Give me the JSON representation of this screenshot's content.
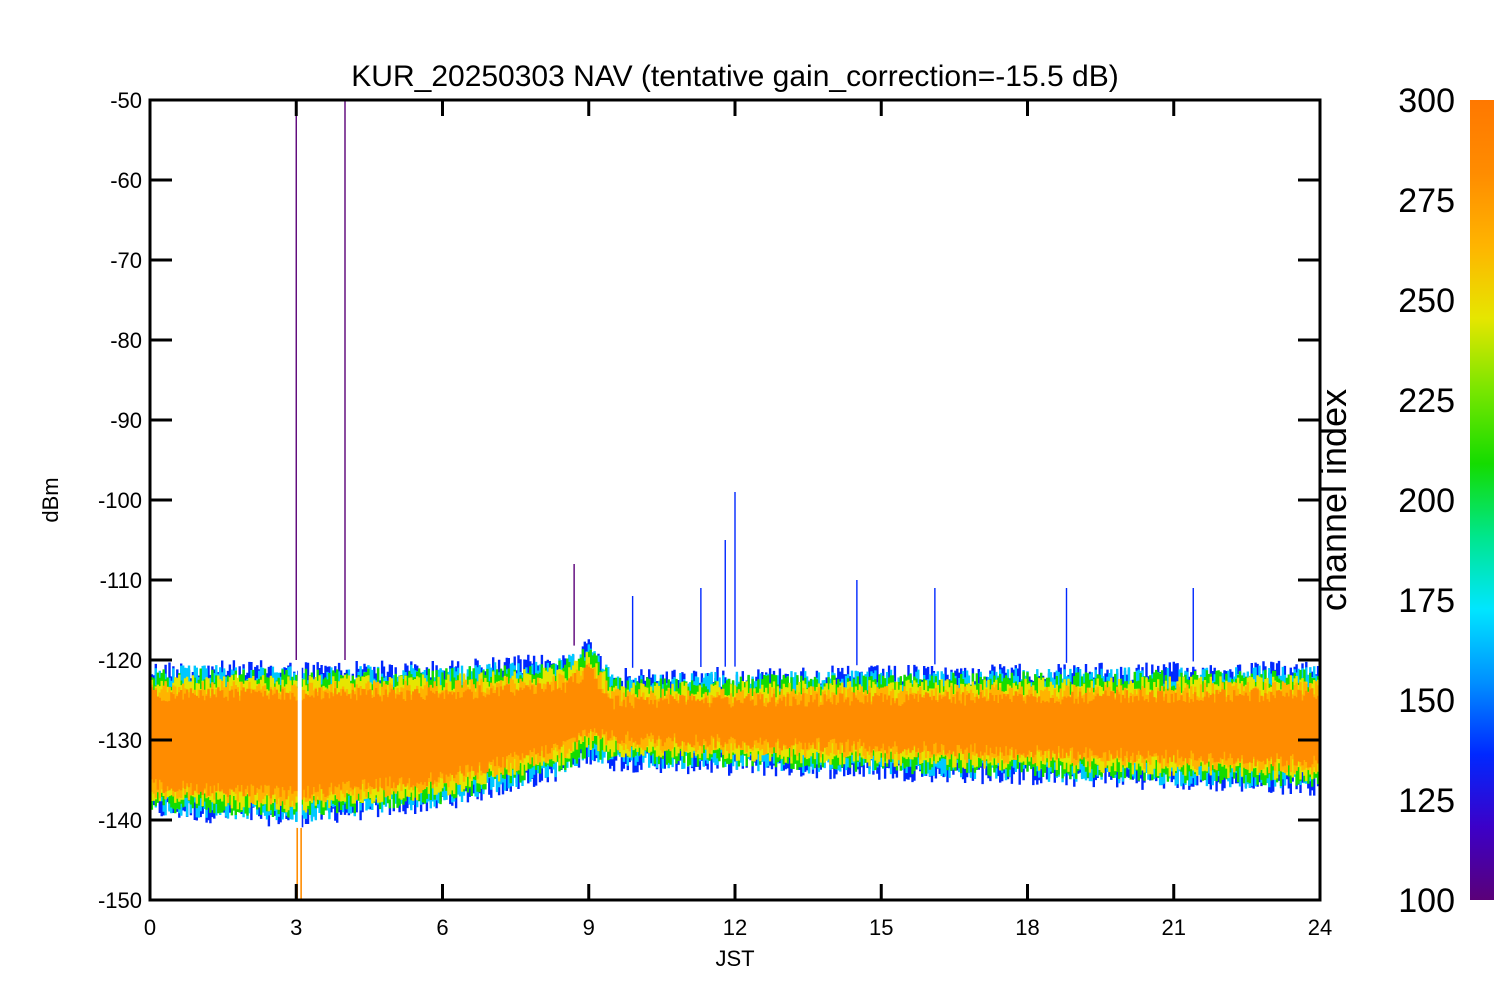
{
  "chart_data": {
    "type": "line",
    "title": "KUR_20250303 NAV (tentative gain_correction=-15.5 dB)",
    "xlabel": "JST",
    "ylabel": "dBm",
    "xlim": [
      0,
      24
    ],
    "ylim": [
      -150,
      -50
    ],
    "x_ticks": [
      0,
      3,
      6,
      9,
      12,
      15,
      18,
      21,
      24
    ],
    "x_tick_labels": [
      "0",
      "3",
      "6",
      "9",
      "12",
      "15",
      "18",
      "21",
      "24"
    ],
    "y_ticks": [
      -50,
      -60,
      -70,
      -80,
      -90,
      -100,
      -110,
      -120,
      -130,
      -140,
      -150
    ],
    "y_tick_labels": [
      "-50",
      "-60",
      "-70",
      "-80",
      "-90",
      "-100",
      "-110",
      "-120",
      "-130",
      "-140",
      "-150"
    ],
    "grid": false,
    "colorbar": {
      "label": "channel index",
      "range": [
        100,
        300
      ],
      "ticks": [
        100,
        125,
        150,
        175,
        200,
        225,
        250,
        275,
        300
      ],
      "tick_labels": [
        "100",
        "125",
        "150",
        "175",
        "200",
        "225",
        "250",
        "275",
        "300"
      ],
      "colormap": [
        "#5a0078",
        "#3c00c8",
        "#0028ff",
        "#0090ff",
        "#00e6ff",
        "#00e68c",
        "#14dc00",
        "#78e600",
        "#e6e600",
        "#ffb400",
        "#ff8c00",
        "#ff7800"
      ]
    },
    "series_summary": {
      "dominant_color": "#ff8c00",
      "band_center_dBm": [
        {
          "x": 0,
          "y": -129
        },
        {
          "x": 3,
          "y": -129
        },
        {
          "x": 6,
          "y": -128.5
        },
        {
          "x": 8.5,
          "y": -128
        },
        {
          "x": 9,
          "y": -125
        },
        {
          "x": 9.5,
          "y": -127
        },
        {
          "x": 12,
          "y": -126
        },
        {
          "x": 24,
          "y": -126
        }
      ],
      "upper_edge_dBm": [
        {
          "x": 0,
          "y": -120
        },
        {
          "x": 6,
          "y": -120
        },
        {
          "x": 8.5,
          "y": -119
        },
        {
          "x": 9,
          "y": -117
        },
        {
          "x": 9.5,
          "y": -121
        },
        {
          "x": 24,
          "y": -120
        }
      ],
      "lower_edge_dBm": [
        {
          "x": 0,
          "y": -140
        },
        {
          "x": 3,
          "y": -141
        },
        {
          "x": 6,
          "y": -139
        },
        {
          "x": 8.5,
          "y": -135
        },
        {
          "x": 9,
          "y": -133
        },
        {
          "x": 9.5,
          "y": -134
        },
        {
          "x": 24,
          "y": -137
        }
      ],
      "spikes": [
        {
          "x": 3.0,
          "y": -50,
          "color": "#5a0078"
        },
        {
          "x": 4.0,
          "y": -50,
          "color": "#5a0078"
        },
        {
          "x": 8.7,
          "y": -108,
          "color": "#5a0078"
        },
        {
          "x": 11.8,
          "y": -105,
          "color": "#0028ff"
        },
        {
          "x": 12.0,
          "y": -99,
          "color": "#0028ff"
        },
        {
          "x": 11.3,
          "y": -111,
          "color": "#0028ff"
        },
        {
          "x": 14.5,
          "y": -110,
          "color": "#0028ff"
        },
        {
          "x": 16.1,
          "y": -111,
          "color": "#0028ff"
        },
        {
          "x": 18.8,
          "y": -111,
          "color": "#0028ff"
        },
        {
          "x": 9.9,
          "y": -112,
          "color": "#0028ff"
        },
        {
          "x": 21.4,
          "y": -111,
          "color": "#0028ff"
        }
      ],
      "dropouts": [
        {
          "x": 3.02,
          "y": -150,
          "color": "#ff8c00"
        },
        {
          "x": 3.1,
          "y": -150,
          "color": "#ff8c00"
        }
      ]
    }
  }
}
